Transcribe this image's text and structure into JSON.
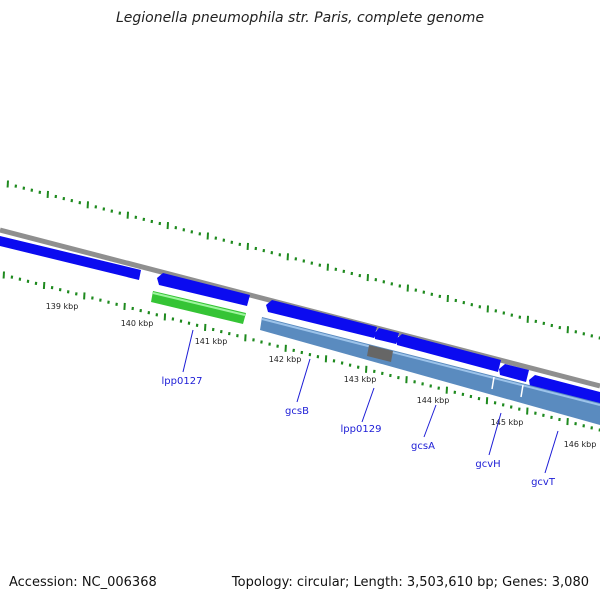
{
  "title": "Legionella pneumophila str. Paris, complete genome",
  "footer": {
    "accession": "Accession: NC_006368",
    "summary": "Topology: circular; Length: 3,503,610 bp; Genes: 3,080"
  },
  "colors": {
    "backbone": "#8f8f8f",
    "forward_gene": "#0b0bf0",
    "reverse_gene": "#35c435",
    "operon_band": "#5a8bbf",
    "highlight_band": "#666666",
    "tick": "#1e8a1e",
    "label": "#1c1cd6"
  },
  "scale": {
    "ticks": [
      "139 kbp",
      "140 kbp",
      "141 kbp",
      "142 kbp",
      "143 kbp",
      "144 kbp",
      "145 kbp",
      "146 kbp"
    ]
  },
  "genes": [
    {
      "label": "lpp0127"
    },
    {
      "label": "gcsB"
    },
    {
      "label": "lpp0129"
    },
    {
      "label": "gcsA"
    },
    {
      "label": "gcvH"
    },
    {
      "label": "gcvT"
    }
  ]
}
